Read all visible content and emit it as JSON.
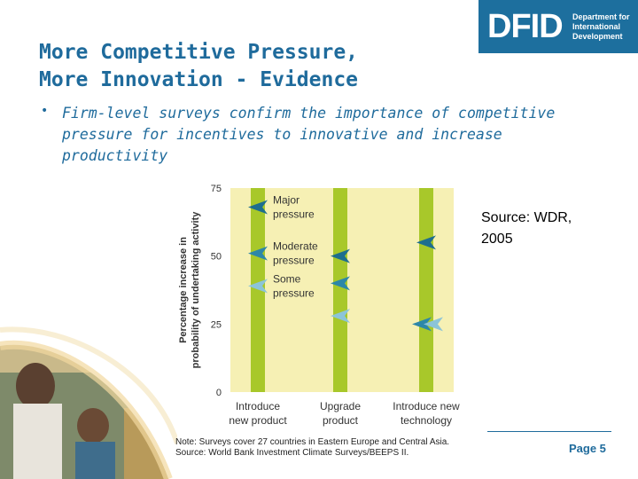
{
  "logo": {
    "text": "DFID",
    "sub_line1": "Department for",
    "sub_line2": "International",
    "sub_line3": "Development"
  },
  "title": {
    "line1": "More Competitive Pressure,",
    "line2": "More Innovation - Evidence"
  },
  "bullet": {
    "marker": "•",
    "text": "Firm-level surveys confirm the importance of competitive pressure for incentives to innovative and increase productivity"
  },
  "source": {
    "line1": "Source: WDR,",
    "line2": "2005"
  },
  "page_label": "Page 5",
  "note": {
    "line1": "Note: Surveys cover 27 countries in Eastern Europe and Central Asia.",
    "line2": "Source: World Bank Investment Climate Surveys/BEEPS II."
  },
  "colors": {
    "brand_blue": "#1f6b9c",
    "plot_bg": "#f6f0b4",
    "bar_green": "#a8c82a",
    "major": "#1e6e8e",
    "moderate": "#2d87a8",
    "some": "#8cc4d8"
  },
  "chart_data": {
    "type": "scatter",
    "title": "",
    "ylabel_line1": "Percentage increase in",
    "ylabel_line2": "probability of undertaking activity",
    "ylim": [
      0,
      75
    ],
    "yticks": [
      "75",
      "50",
      "25",
      "0"
    ],
    "categories": [
      {
        "line1": "Introduce",
        "line2": "new product"
      },
      {
        "line1": "Upgrade",
        "line2": "product"
      },
      {
        "line1": "Introduce new",
        "line2": "technology"
      }
    ],
    "series": [
      {
        "name": "Major pressure",
        "name_line1": "Major",
        "name_line2": "pressure",
        "values": [
          68,
          50,
          55
        ]
      },
      {
        "name": "Moderate pressure",
        "name_line1": "Moderate",
        "name_line2": "pressure",
        "values": [
          51,
          40,
          25
        ]
      },
      {
        "name": "Some pressure",
        "name_line1": "Some",
        "name_line2": "pressure",
        "values": [
          39,
          28,
          25
        ]
      }
    ]
  }
}
